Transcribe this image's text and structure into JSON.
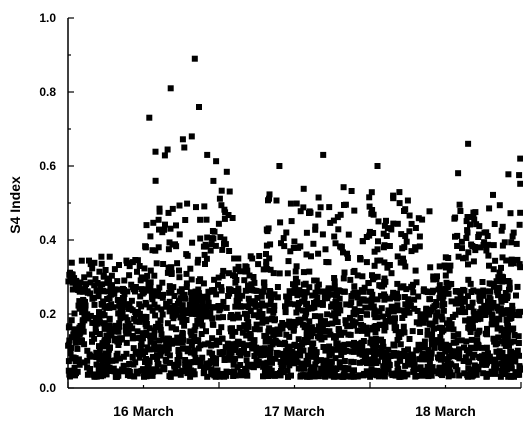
{
  "chart_data": {
    "type": "scatter",
    "ylabel": "S4 Index",
    "xlabel": "",
    "ylim": [
      0,
      1.0
    ],
    "yticks": [
      "0.0",
      "0.2",
      "0.4",
      "0.6",
      "0.8",
      "1.0"
    ],
    "xlim": [
      0,
      3
    ],
    "x_tick_labels": [
      "16 March",
      "17 March",
      "18 March"
    ],
    "grid": false,
    "marker": "square",
    "marker_color": "#000000",
    "notable_points": [
      {
        "x": 0.84,
        "y": 0.89
      },
      {
        "x": 0.68,
        "y": 0.81
      },
      {
        "x": 0.82,
        "y": 0.68
      },
      {
        "x": 0.77,
        "y": 0.65
      },
      {
        "x": 1.69,
        "y": 0.63
      },
      {
        "x": 2.65,
        "y": 0.66
      },
      {
        "x": 3.0,
        "y": 0.62
      },
      {
        "x": 1.4,
        "y": 0.6
      },
      {
        "x": 0.58,
        "y": 0.56
      },
      {
        "x": 2.05,
        "y": 0.6
      }
    ],
    "distribution": {
      "baseline_range": [
        0.03,
        0.26
      ],
      "typical_peak_range": [
        0.26,
        0.5
      ],
      "active_windows": [
        {
          "x_start": 0.5,
          "x_end": 1.1,
          "max": 0.89
        },
        {
          "x_start": 1.3,
          "x_end": 1.9,
          "max": 0.63
        },
        {
          "x_start": 1.95,
          "x_end": 2.4,
          "max": 0.6
        },
        {
          "x_start": 2.55,
          "x_end": 3.0,
          "max": 0.66
        }
      ]
    }
  }
}
